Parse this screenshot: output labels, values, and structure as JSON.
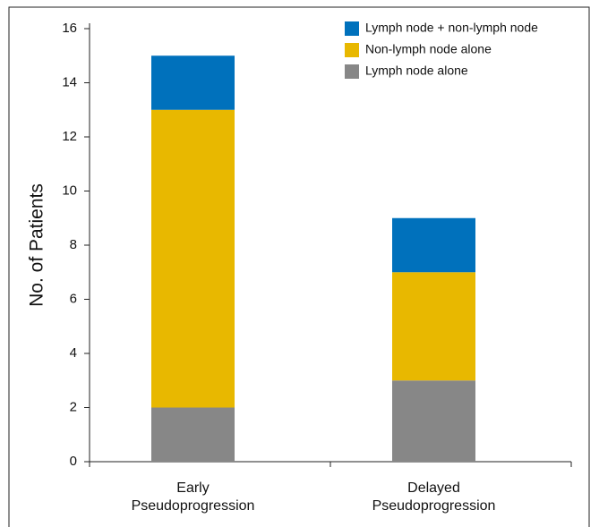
{
  "chart_data": {
    "type": "stacked_bar",
    "y_label": "No. of Patients",
    "categories": [
      "Early\nPseudoprogression",
      "Delayed\nPseudoprogression"
    ],
    "series": [
      {
        "name": "Lymph node alone",
        "color": "#878787",
        "values": [
          2,
          3
        ]
      },
      {
        "name": "Non-lymph node alone",
        "color": "#e8b800",
        "values": [
          11,
          4
        ]
      },
      {
        "name": "Lymph node + non-lymph node",
        "color": "#0071bc",
        "values": [
          2,
          2
        ]
      }
    ],
    "ylim": [
      0,
      16
    ],
    "yticks": [
      0,
      2,
      4,
      6,
      8,
      10,
      12,
      14,
      16
    ]
  }
}
